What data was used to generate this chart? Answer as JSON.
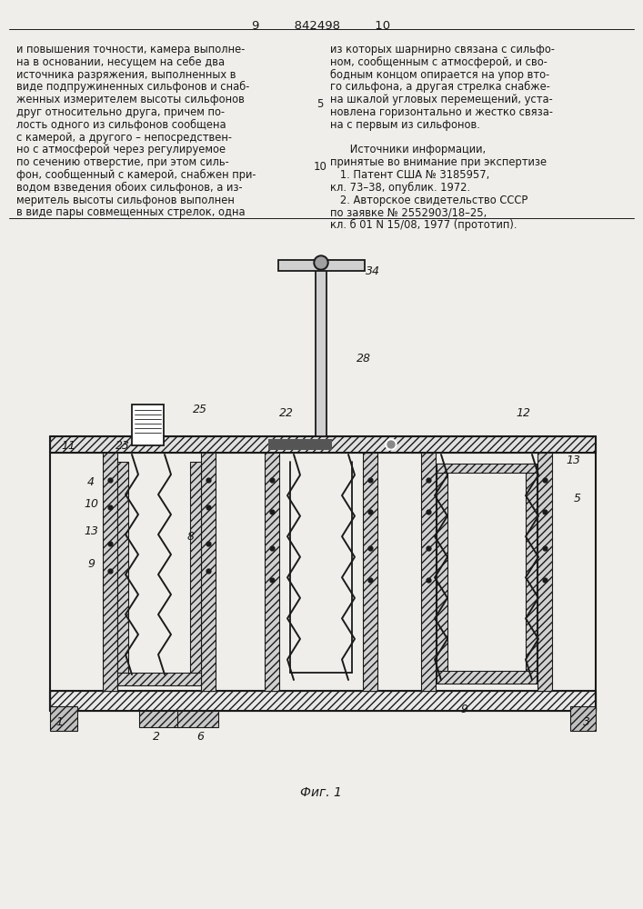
{
  "bg_color": "#f0eeea",
  "text_color": "#1a1a1a",
  "line_color": "#1a1a1a",
  "page_width": 7.07,
  "page_height": 10.0,
  "header_text": "9         842498         10",
  "left_column_text": [
    "и повышения точности, камера выполне-",
    "на в основании, несущем на себе два",
    "источника разряжения, выполненных в",
    "виде подпружиненных сильфонов и снаб-",
    "женных измерителем высоты сильфонов",
    "друг относительно друга, причем по-",
    "лость одного из сильфонов сообщена",
    "с камерой, а другого – непосредствен-",
    "но с атмосферой через регулируемое",
    "по сечению отверстие, при этом силь-",
    "фон, сообщенный с камерой, снабжен при-",
    "водом взведения обоих сильфонов, а из-",
    "меритель высоты сильфонов выполнен",
    "в виде пары совмещенных стрелок, одна"
  ],
  "right_column_text": [
    "из которых шарнирно связана с сильфо-",
    "ном, сообщенным с атмосферой, и сво-",
    "бодным концом опирается на упор вто-",
    "го сильфона, а другая стрелка снабже-",
    "на шкалой угловых перемещений, уста-",
    "новлена горизонтально и жестко связа-",
    "на с первым из сильфонов.",
    "",
    "      Источники информации,",
    "принятые во внимание при экспертизе",
    "   1. Патент США № 3185957,",
    "кл. 73–38, опублик. 1972.",
    "   2. Авторское свидетельство СССР",
    "по заявке № 2552903/18–25,",
    "кл. б 01 N 15/08, 1977 (прототип)."
  ],
  "figure_caption": "Фиг. 1",
  "line_number_5": "5",
  "line_number_10": "10"
}
